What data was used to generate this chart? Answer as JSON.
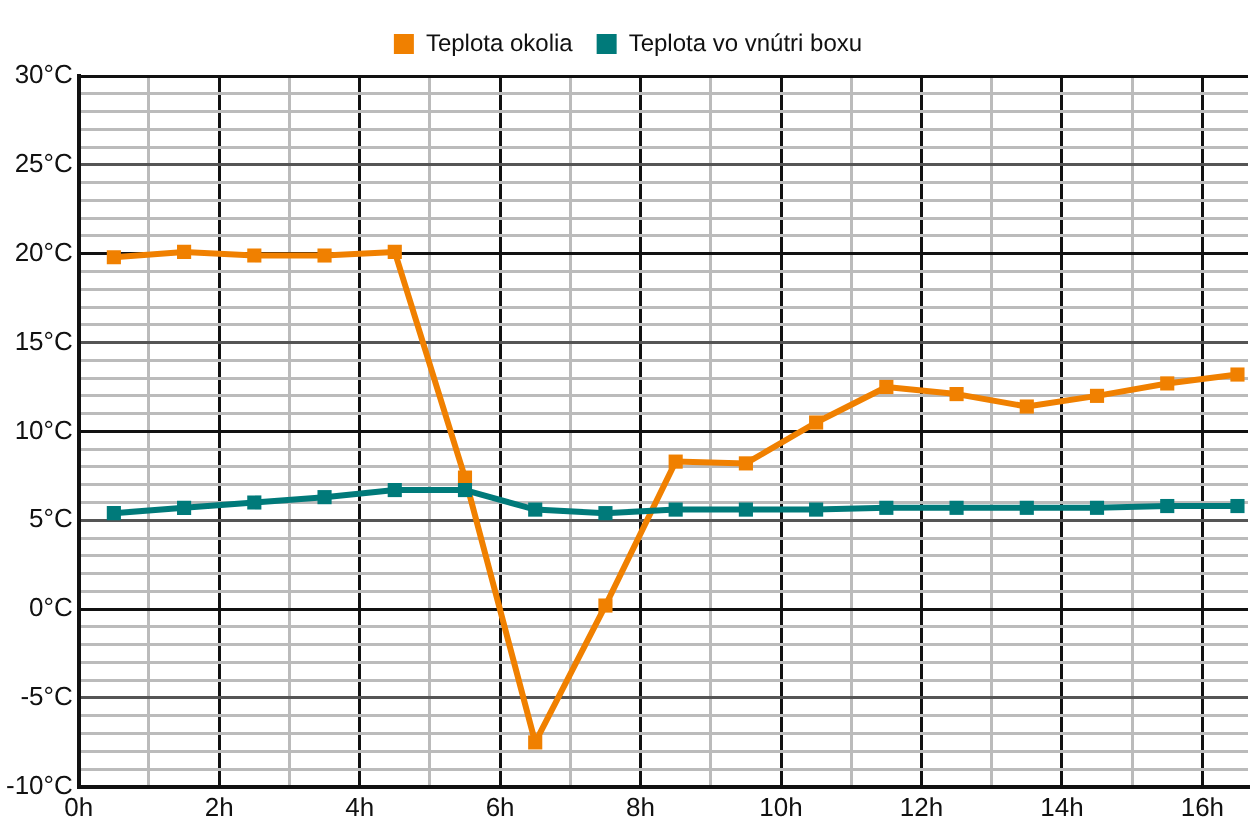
{
  "chart_data": {
    "type": "line",
    "x": [
      0.5,
      1.5,
      2.5,
      3.5,
      4.5,
      5.5,
      6.5,
      7.5,
      8.5,
      9.5,
      10.5,
      11.5,
      12.5,
      13.5,
      14.5,
      15.5,
      16.5
    ],
    "series": [
      {
        "name": "Teplota okolia",
        "color": "#f08000",
        "values": [
          19.8,
          20.1,
          19.9,
          19.9,
          20.1,
          7.4,
          -7.5,
          0.2,
          8.3,
          8.2,
          10.5,
          12.5,
          12.1,
          11.4,
          12.0,
          12.7,
          13.2
        ]
      },
      {
        "name": "Teplota vo vnútri boxu",
        "color": "#007a7a",
        "values": [
          5.4,
          5.7,
          6.0,
          6.3,
          6.7,
          6.7,
          5.6,
          5.4,
          5.6,
          5.6,
          5.6,
          5.7,
          5.7,
          5.7,
          5.7,
          5.8,
          5.8
        ]
      }
    ],
    "xlim": [
      0,
      16.65
    ],
    "ylim": [
      -10,
      30
    ],
    "xticks": [
      {
        "value": 0,
        "label": "0h"
      },
      {
        "value": 1,
        "label": null
      },
      {
        "value": 2,
        "label": "2h"
      },
      {
        "value": 3,
        "label": null
      },
      {
        "value": 4,
        "label": "4h"
      },
      {
        "value": 5,
        "label": null
      },
      {
        "value": 6,
        "label": "6h"
      },
      {
        "value": 7,
        "label": null
      },
      {
        "value": 8,
        "label": "8h"
      },
      {
        "value": 9,
        "label": null
      },
      {
        "value": 10,
        "label": "10h"
      },
      {
        "value": 11,
        "label": null
      },
      {
        "value": 12,
        "label": "12h"
      },
      {
        "value": 13,
        "label": null
      },
      {
        "value": 14,
        "label": "14h"
      },
      {
        "value": 15,
        "label": null
      },
      {
        "value": 16,
        "label": "16h"
      }
    ],
    "yticks": [
      {
        "value": -10,
        "label": "-10°C"
      },
      {
        "value": -9,
        "label": null
      },
      {
        "value": -8,
        "label": null
      },
      {
        "value": -7,
        "label": null
      },
      {
        "value": -6,
        "label": null
      },
      {
        "value": -5,
        "label": "-5°C"
      },
      {
        "value": -4,
        "label": null
      },
      {
        "value": -3,
        "label": null
      },
      {
        "value": -2,
        "label": null
      },
      {
        "value": -1,
        "label": null
      },
      {
        "value": 0,
        "label": "0°C"
      },
      {
        "value": 1,
        "label": null
      },
      {
        "value": 2,
        "label": null
      },
      {
        "value": 3,
        "label": null
      },
      {
        "value": 4,
        "label": null
      },
      {
        "value": 5,
        "label": "5°C"
      },
      {
        "value": 6,
        "label": null
      },
      {
        "value": 7,
        "label": null
      },
      {
        "value": 8,
        "label": null
      },
      {
        "value": 9,
        "label": null
      },
      {
        "value": 10,
        "label": "10°C"
      },
      {
        "value": 11,
        "label": null
      },
      {
        "value": 12,
        "label": null
      },
      {
        "value": 13,
        "label": null
      },
      {
        "value": 14,
        "label": null
      },
      {
        "value": 15,
        "label": "15°C"
      },
      {
        "value": 16,
        "label": null
      },
      {
        "value": 17,
        "label": null
      },
      {
        "value": 18,
        "label": null
      },
      {
        "value": 19,
        "label": null
      },
      {
        "value": 20,
        "label": "20°C"
      },
      {
        "value": 21,
        "label": null
      },
      {
        "value": 22,
        "label": null
      },
      {
        "value": 23,
        "label": null
      },
      {
        "value": 24,
        "label": null
      },
      {
        "value": 25,
        "label": "25°C"
      },
      {
        "value": 26,
        "label": null
      },
      {
        "value": 27,
        "label": null
      },
      {
        "value": 28,
        "label": null
      },
      {
        "value": 29,
        "label": null
      },
      {
        "value": 30,
        "label": "30°C"
      }
    ],
    "grid": true,
    "legend": "top",
    "marker": "square",
    "line_style": "solid"
  }
}
